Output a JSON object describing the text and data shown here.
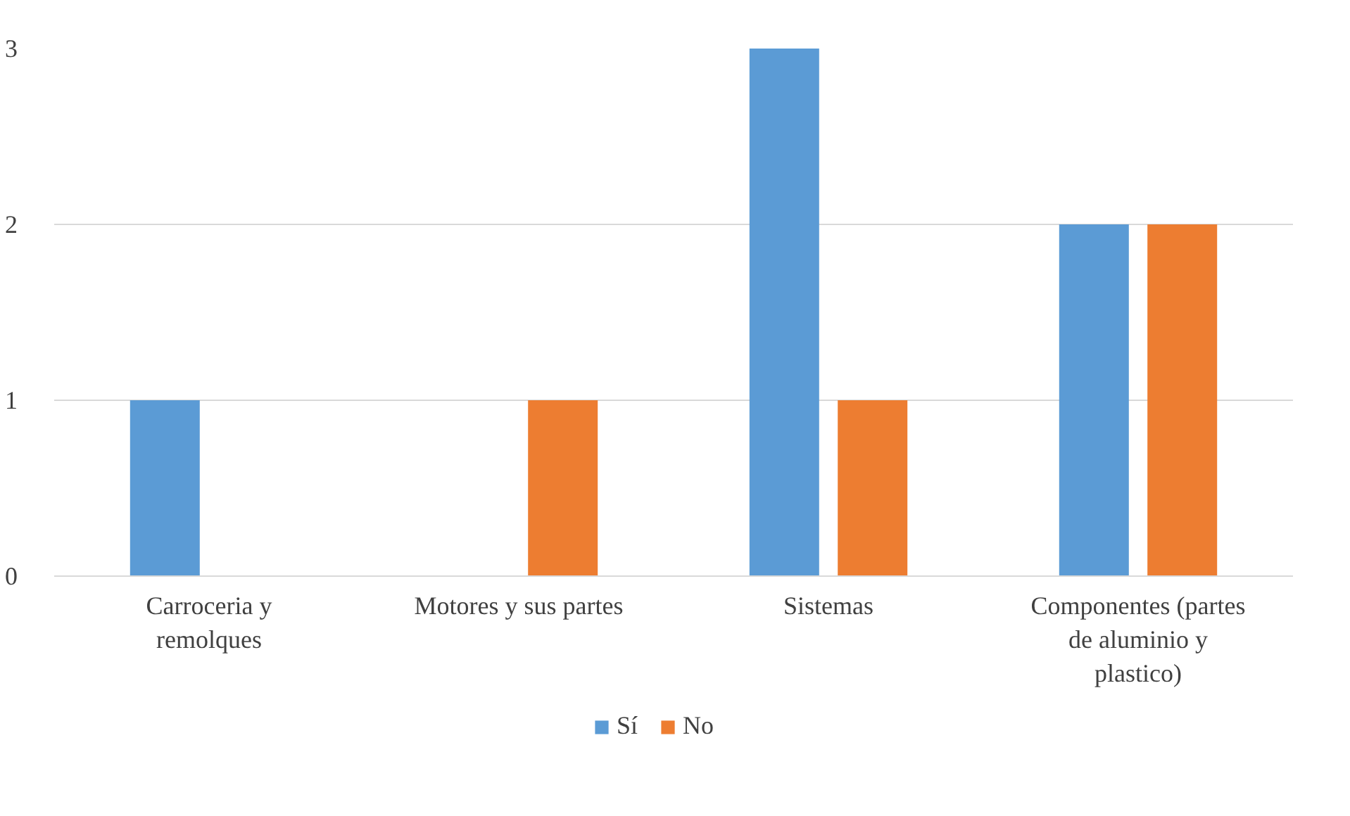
{
  "chart_data": {
    "type": "bar",
    "categories": [
      "Carroceria y remolques",
      "Motores y sus partes",
      "Sistemas",
      "Componentes (partes de aluminio y plastico)"
    ],
    "series": [
      {
        "name": "Sí",
        "color": "#5b9bd5",
        "values": [
          1,
          0,
          3,
          2
        ]
      },
      {
        "name": "No",
        "color": "#ed7d31",
        "values": [
          0,
          1,
          1,
          2
        ]
      }
    ],
    "ylim": [
      0,
      3
    ],
    "yticks": [
      0,
      1,
      2,
      3
    ],
    "grid": "y",
    "legend": "bottom"
  }
}
